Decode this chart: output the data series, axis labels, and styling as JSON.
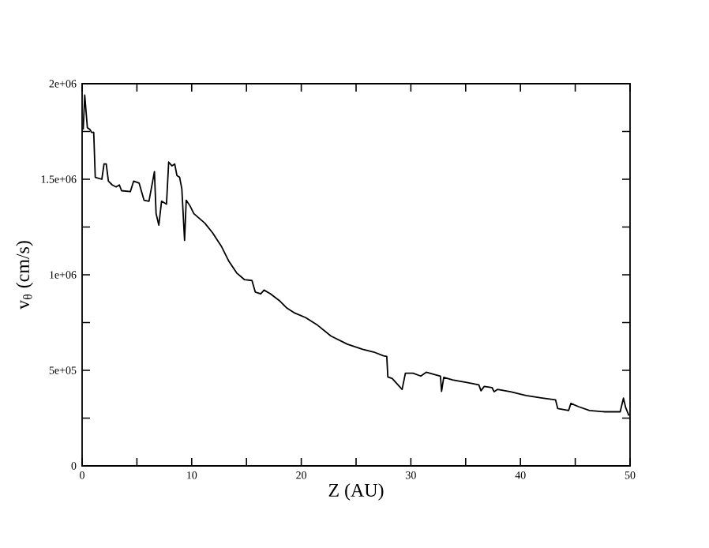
{
  "chart_data": {
    "type": "line",
    "xlabel": "Z (AU)",
    "ylabel": "v$_{θ}$ (cm/s)",
    "xlim": [
      0,
      50
    ],
    "ylim": [
      0,
      2000000
    ],
    "xticks": [
      0,
      {
        "value": 5,
        "label": null
      },
      10,
      {
        "value": 15,
        "label": null
      },
      20,
      {
        "value": 25,
        "label": null
      },
      30,
      {
        "value": 35,
        "label": null
      },
      40,
      {
        "value": 45,
        "label": null
      },
      50
    ],
    "yticks": [
      0,
      {
        "value": 250000,
        "label": null
      },
      {
        "value": 500000,
        "label": "5e+05"
      },
      {
        "value": 750000,
        "label": null
      },
      {
        "value": 1000000,
        "label": "1e+06"
      },
      {
        "value": 1250000,
        "label": null
      },
      {
        "value": 1500000,
        "label": "1.5e+06"
      },
      {
        "value": 1750000,
        "label": null
      },
      {
        "value": 2000000,
        "label": "2e+06"
      }
    ],
    "grid": false,
    "marker": "none",
    "line_style": "solid",
    "series": [
      {
        "color": "#000000",
        "x": [
          0.1,
          0.24,
          0.48,
          0.72,
          0.87,
          1.06,
          1.2,
          1.8,
          2.0,
          2.2,
          2.4,
          2.75,
          3.1,
          3.4,
          3.6,
          4.4,
          4.7,
          5.2,
          5.4,
          5.65,
          6.1,
          6.6,
          6.75,
          7.0,
          7.25,
          7.7,
          7.9,
          8.2,
          8.45,
          8.65,
          8.9,
          9.1,
          9.35,
          9.5,
          9.85,
          10.2,
          10.6,
          11.2,
          11.9,
          12.7,
          13.4,
          14.1,
          14.8,
          15.5,
          15.8,
          16.3,
          16.6,
          17.2,
          18.0,
          18.7,
          19.4,
          20.4,
          21.4,
          22.7,
          24.2,
          25.6,
          26.6,
          27.5,
          27.8,
          27.9,
          28.3,
          29.2,
          29.5,
          30.2,
          30.9,
          31.4,
          32.3,
          32.7,
          32.8,
          33.0,
          33.8,
          35.2,
          36.2,
          36.4,
          36.7,
          37.4,
          37.6,
          37.9,
          39.1,
          40.5,
          42.0,
          43.2,
          43.4,
          44.4,
          44.6,
          45.3,
          46.3,
          47.7,
          49.1,
          49.4,
          49.6,
          49.9
        ],
        "values": [
          1760000,
          1940000,
          1770000,
          1760000,
          1745000,
          1745000,
          1510000,
          1500000,
          1580000,
          1580000,
          1490000,
          1470000,
          1460000,
          1470000,
          1440000,
          1435000,
          1490000,
          1480000,
          1440000,
          1390000,
          1385000,
          1540000,
          1320000,
          1260000,
          1385000,
          1370000,
          1590000,
          1570000,
          1580000,
          1520000,
          1510000,
          1450000,
          1180000,
          1390000,
          1360000,
          1320000,
          1300000,
          1270000,
          1220000,
          1150000,
          1070000,
          1010000,
          975000,
          970000,
          910000,
          900000,
          920000,
          900000,
          865000,
          825000,
          800000,
          776000,
          740000,
          680000,
          637000,
          610000,
          596000,
          576000,
          573000,
          465000,
          457000,
          400000,
          485000,
          485000,
          470000,
          490000,
          476000,
          470000,
          390000,
          463000,
          450000,
          435000,
          424000,
          393000,
          416000,
          410000,
          388000,
          400000,
          388000,
          368000,
          355000,
          346000,
          300000,
          290000,
          327000,
          310000,
          290000,
          283000,
          283000,
          355000,
          305000,
          263000
        ]
      }
    ]
  }
}
